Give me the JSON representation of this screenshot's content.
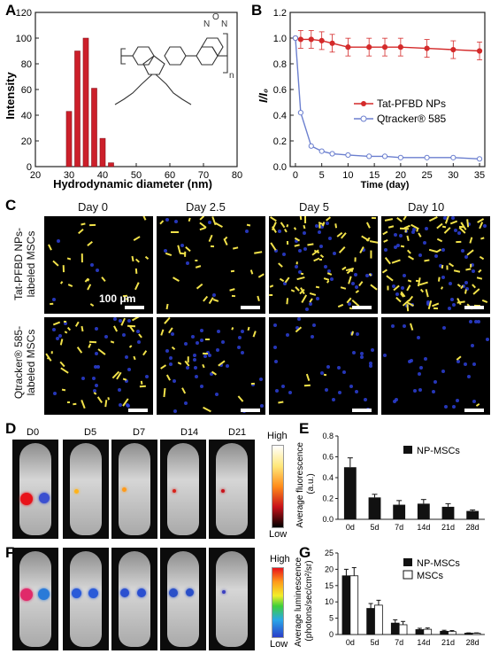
{
  "panels": {
    "A": {
      "letter": "A",
      "chart_data": {
        "type": "bar",
        "x": [
          30,
          32.5,
          35,
          37.5,
          40,
          42.5
        ],
        "values": [
          43,
          90,
          100,
          61,
          22,
          3
        ],
        "xlabel": "Hydrodynamic diameter (nm)",
        "ylabel": "Intensity",
        "xlim": [
          20,
          80
        ],
        "ylim": [
          0,
          120
        ],
        "xticks": [
          "20",
          "30",
          "40",
          "50",
          "60",
          "70",
          "80"
        ],
        "yticks": [
          "0",
          "20",
          "40",
          "60",
          "80",
          "100",
          "120"
        ],
        "color": "#cc1f2a"
      },
      "structure_subscript": "n"
    },
    "B": {
      "letter": "B",
      "chart_data": {
        "type": "line",
        "x": [
          0,
          1,
          3,
          5,
          7,
          10,
          14,
          17,
          20,
          25,
          30,
          35
        ],
        "series": [
          {
            "name": "Tat-PFBD  NPs",
            "values": [
              1.0,
              0.99,
              0.99,
              0.98,
              0.96,
              0.93,
              0.93,
              0.93,
              0.93,
              0.92,
              0.91,
              0.9
            ],
            "color": "#d42a2a"
          },
          {
            "name": "Qtracker® 585",
            "values": [
              1.0,
              0.42,
              0.16,
              0.12,
              0.1,
              0.09,
              0.08,
              0.08,
              0.07,
              0.07,
              0.07,
              0.06
            ],
            "color": "#6b7fcf"
          }
        ],
        "xlabel": "Time (day)",
        "ylabel": "I/I₀",
        "xlim": [
          -1,
          36
        ],
        "ylim": [
          0,
          1.2
        ],
        "xticks": [
          "0",
          "5",
          "10",
          "15",
          "20",
          "25",
          "30",
          "35"
        ],
        "yticks": [
          "0.0",
          "0.2",
          "0.4",
          "0.6",
          "0.8",
          "1.0",
          "1.2"
        ],
        "legend": "center-right"
      }
    },
    "C": {
      "letter": "C",
      "days": [
        "Day 0",
        "Day 2.5",
        "Day 5",
        "Day 10"
      ],
      "row1_label": "Tat-PFBD  NPs-\nlabeled MSCs",
      "row2_label": "Qtracker® 585-\nlabeled MSCs",
      "scale_label": "100 μm"
    },
    "D": {
      "letter": "D",
      "days": [
        "D0",
        "D5",
        "D7",
        "D14",
        "D21"
      ],
      "colorbar_high": "High",
      "colorbar_low": "Low"
    },
    "E": {
      "letter": "E",
      "chart_data": {
        "type": "bar",
        "categories": [
          "0d",
          "5d",
          "7d",
          "14d",
          "21d",
          "28d"
        ],
        "series": [
          {
            "name": "NP-MSCs",
            "values": [
              0.5,
              0.21,
              0.14,
              0.15,
              0.12,
              0.08
            ],
            "errors": [
              0.09,
              0.03,
              0.04,
              0.04,
              0.03,
              0.01
            ],
            "color": "#111111"
          }
        ],
        "ylabel": "Average fluorescence\n(a.u.)",
        "ylim": [
          0,
          0.8
        ],
        "yticks": [
          "0.0",
          "0.2",
          "0.4",
          "0.6",
          "0.8"
        ],
        "legend": "top-right"
      }
    },
    "F": {
      "letter": "F",
      "colorbar_high": "High",
      "colorbar_low": "Low"
    },
    "G": {
      "letter": "G",
      "chart_data": {
        "type": "bar",
        "categories": [
          "0d",
          "5d",
          "7d",
          "14d",
          "21d",
          "28d"
        ],
        "series": [
          {
            "name": "NP-MSCs",
            "values": [
              18,
              8,
              3.5,
              1.5,
              1.0,
              0.4
            ],
            "errors": [
              2,
              1.5,
              1.0,
              0.4,
              0.3,
              0.1
            ],
            "color": "#111111"
          },
          {
            "name": "MSCs",
            "values": [
              18,
              9,
              3.0,
              1.6,
              0.9,
              0.4
            ],
            "errors": [
              2.5,
              1.5,
              1.0,
              0.4,
              0.3,
              0.1
            ],
            "color": "#ffffff"
          }
        ],
        "ylabel": "Average luminescence\n(photons/sec/cm²/sr)",
        "ylim": [
          0,
          25
        ],
        "yticks": [
          "0",
          "5",
          "10",
          "15",
          "20",
          "25"
        ],
        "legend": "top-right"
      }
    }
  }
}
